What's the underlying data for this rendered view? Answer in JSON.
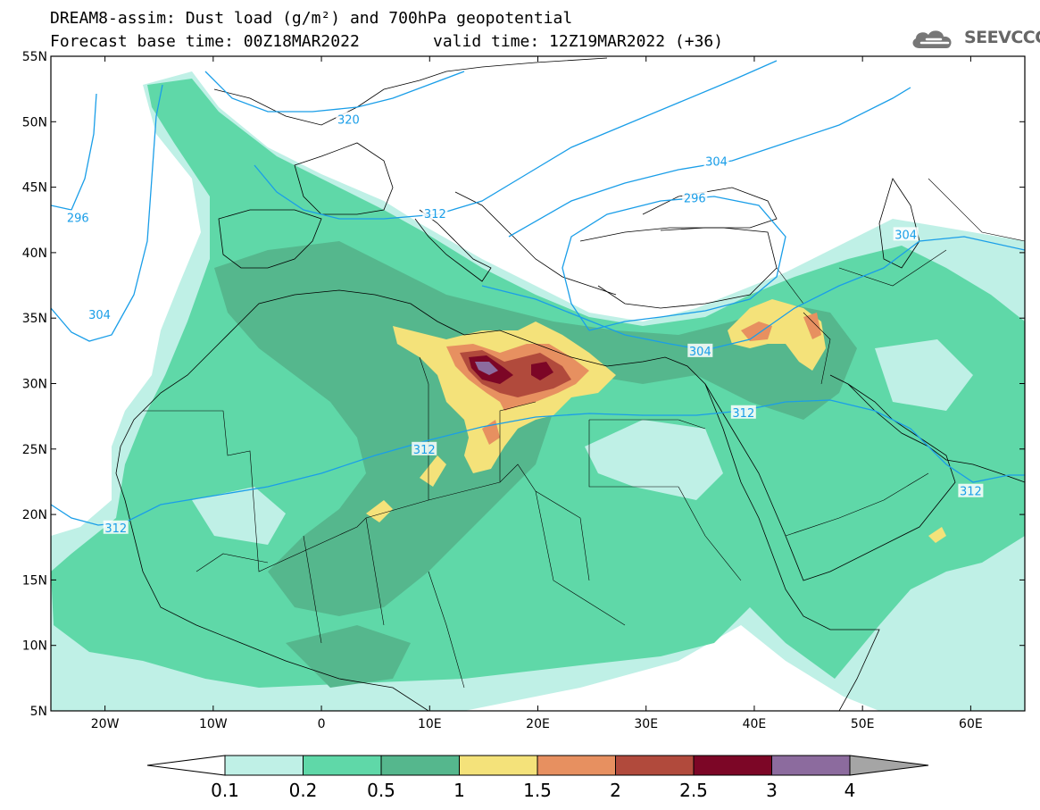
{
  "title_line1": "DREAM8-assim: Dust load (g/m²) and 700hPa geopotential",
  "title_line2": "Forecast base time: 00Z18MAR2022",
  "valid_time": "valid time: 12Z19MAR2022 (+36)",
  "logo_text": "SEEVCCC",
  "logo_icon": "cloud-logo-icon",
  "map": {
    "lon_range": [
      -25,
      65
    ],
    "lat_range": [
      5,
      55
    ],
    "y_ticks": [
      "55N",
      "50N",
      "45N",
      "40N",
      "35N",
      "30N",
      "25N",
      "20N",
      "15N",
      "10N",
      "5N"
    ],
    "x_ticks": [
      "20W",
      "10W",
      "0",
      "10E",
      "20E",
      "30E",
      "40E",
      "50E",
      "60E"
    ],
    "contour_labels": [
      {
        "text": "320",
        "lon": 2.5,
        "lat": 50.2
      },
      {
        "text": "296",
        "lon": -22.5,
        "lat": 42.7
      },
      {
        "text": "312",
        "lon": 10.5,
        "lat": 43.0
      },
      {
        "text": "304",
        "lon": 36.5,
        "lat": 47.0
      },
      {
        "text": "296",
        "lon": 34.5,
        "lat": 44.2
      },
      {
        "text": "304",
        "lon": 54.0,
        "lat": 41.4
      },
      {
        "text": "304",
        "lon": -20.5,
        "lat": 35.3
      },
      {
        "text": "304",
        "lon": 35.0,
        "lat": 32.5
      },
      {
        "text": "312",
        "lon": 39.0,
        "lat": 27.8
      },
      {
        "text": "312",
        "lon": 9.5,
        "lat": 25.0
      },
      {
        "text": "312",
        "lon": 60.0,
        "lat": 21.8
      },
      {
        "text": "312",
        "lon": -19.0,
        "lat": 19.0
      }
    ]
  },
  "colorbar": {
    "labels": [
      "0.1",
      "0.2",
      "0.5",
      "1",
      "1.5",
      "2",
      "2.5",
      "3",
      "4"
    ],
    "colors": [
      "#bff0e6",
      "#5fd8a8",
      "#55b78d",
      "#f4e27a",
      "#e79060",
      "#b14a3c",
      "#7c0626",
      "#8c6b9e",
      "#a5a5a5"
    ]
  }
}
